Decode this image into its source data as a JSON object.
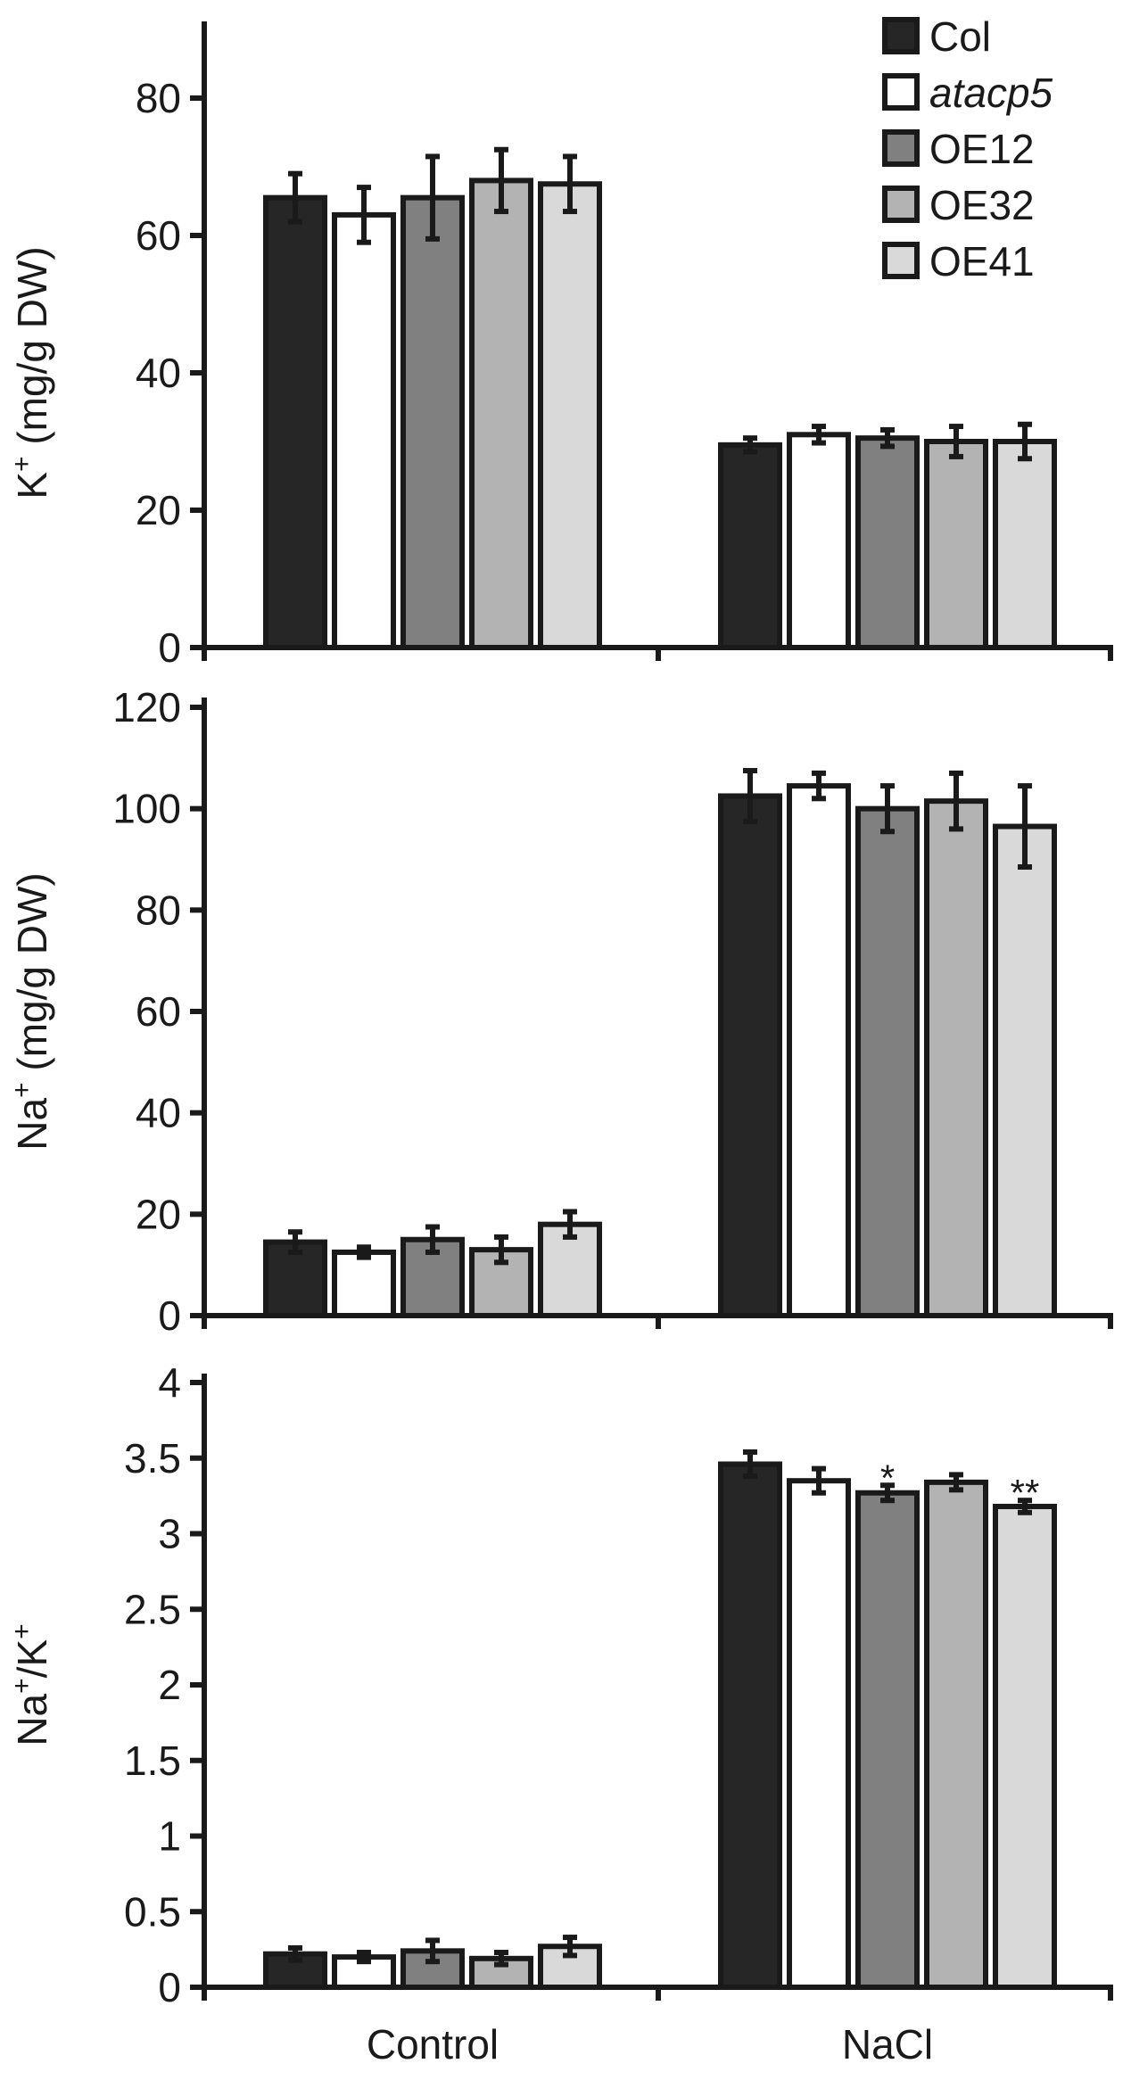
{
  "legend": [
    {
      "name": "Col",
      "color": "#262626",
      "italic": false
    },
    {
      "name": "atacp5",
      "color": "#ffffff",
      "italic": true
    },
    {
      "name": "OE12",
      "color": "#808080",
      "italic": false
    },
    {
      "name": "OE32",
      "color": "#b3b3b3",
      "italic": false
    },
    {
      "name": "OE41",
      "color": "#d9d9d9",
      "italic": false
    }
  ],
  "chart_data": [
    {
      "type": "bar",
      "ylabel_main": "K",
      "ylabel_sup": "+",
      "ylabel_rest": " (mg/g DW)",
      "categories": [
        "Control",
        "NaCl"
      ],
      "ylim": [
        0,
        80
      ],
      "yticks": [
        "0",
        "20",
        "40",
        "60",
        "80"
      ],
      "show_xlabels": false,
      "series": [
        {
          "name": "Col",
          "values": [
            65.5,
            29.5
          ],
          "errors": [
            3.5,
            1.0
          ],
          "annotations": [
            "",
            ""
          ]
        },
        {
          "name": "atacp5",
          "values": [
            63.0,
            31.0
          ],
          "errors": [
            4.0,
            1.2
          ],
          "annotations": [
            "",
            ""
          ]
        },
        {
          "name": "OE12",
          "values": [
            65.5,
            30.5
          ],
          "errors": [
            6.0,
            1.2
          ],
          "annotations": [
            "",
            ""
          ]
        },
        {
          "name": "OE32",
          "values": [
            68.0,
            30.0
          ],
          "errors": [
            4.5,
            2.2
          ],
          "annotations": [
            "",
            ""
          ]
        },
        {
          "name": "OE41",
          "values": [
            67.5,
            30.0
          ],
          "errors": [
            4.0,
            2.5
          ],
          "annotations": [
            "",
            ""
          ]
        }
      ]
    },
    {
      "type": "bar",
      "ylabel_main": "Na",
      "ylabel_sup": "+",
      "ylabel_rest": " (mg/g DW)",
      "categories": [
        "Control",
        "NaCl"
      ],
      "ylim": [
        0,
        120
      ],
      "yticks": [
        "0",
        "20",
        "40",
        "60",
        "80",
        "100",
        "120"
      ],
      "show_xlabels": false,
      "series": [
        {
          "name": "Col",
          "values": [
            14.5,
            102.5
          ],
          "errors": [
            2.0,
            5.0
          ],
          "annotations": [
            "",
            ""
          ]
        },
        {
          "name": "atacp5",
          "values": [
            12.5,
            104.5
          ],
          "errors": [
            1.0,
            2.5
          ],
          "annotations": [
            "",
            ""
          ]
        },
        {
          "name": "OE12",
          "values": [
            15.0,
            100.0
          ],
          "errors": [
            2.5,
            4.5
          ],
          "annotations": [
            "",
            ""
          ]
        },
        {
          "name": "OE32",
          "values": [
            13.0,
            101.5
          ],
          "errors": [
            2.5,
            5.5
          ],
          "annotations": [
            "",
            ""
          ]
        },
        {
          "name": "OE41",
          "values": [
            18.0,
            96.5
          ],
          "errors": [
            2.5,
            8.0
          ],
          "annotations": [
            "",
            ""
          ]
        }
      ]
    },
    {
      "type": "bar",
      "ylabel_main": "Na",
      "ylabel_sup": "+",
      "ylabel_rest": "/K",
      "ylabel_sup2": "+",
      "categories": [
        "Control",
        "NaCl"
      ],
      "ylim": [
        0,
        4
      ],
      "yticks": [
        "0",
        "0.5",
        "1",
        "1.5",
        "2",
        "2.5",
        "3",
        "3.5",
        "4"
      ],
      "show_xlabels": true,
      "series": [
        {
          "name": "Col",
          "values": [
            0.22,
            3.46
          ],
          "errors": [
            0.04,
            0.08
          ],
          "annotations": [
            "",
            ""
          ]
        },
        {
          "name": "atacp5",
          "values": [
            0.2,
            3.35
          ],
          "errors": [
            0.03,
            0.08
          ],
          "annotations": [
            "",
            ""
          ]
        },
        {
          "name": "OE12",
          "values": [
            0.24,
            3.27
          ],
          "errors": [
            0.07,
            0.05
          ],
          "annotations": [
            "",
            "*"
          ]
        },
        {
          "name": "OE32",
          "values": [
            0.19,
            3.34
          ],
          "errors": [
            0.04,
            0.05
          ],
          "annotations": [
            "",
            ""
          ]
        },
        {
          "name": "OE41",
          "values": [
            0.27,
            3.18
          ],
          "errors": [
            0.06,
            0.04
          ],
          "annotations": [
            "",
            "**"
          ]
        }
      ]
    }
  ]
}
